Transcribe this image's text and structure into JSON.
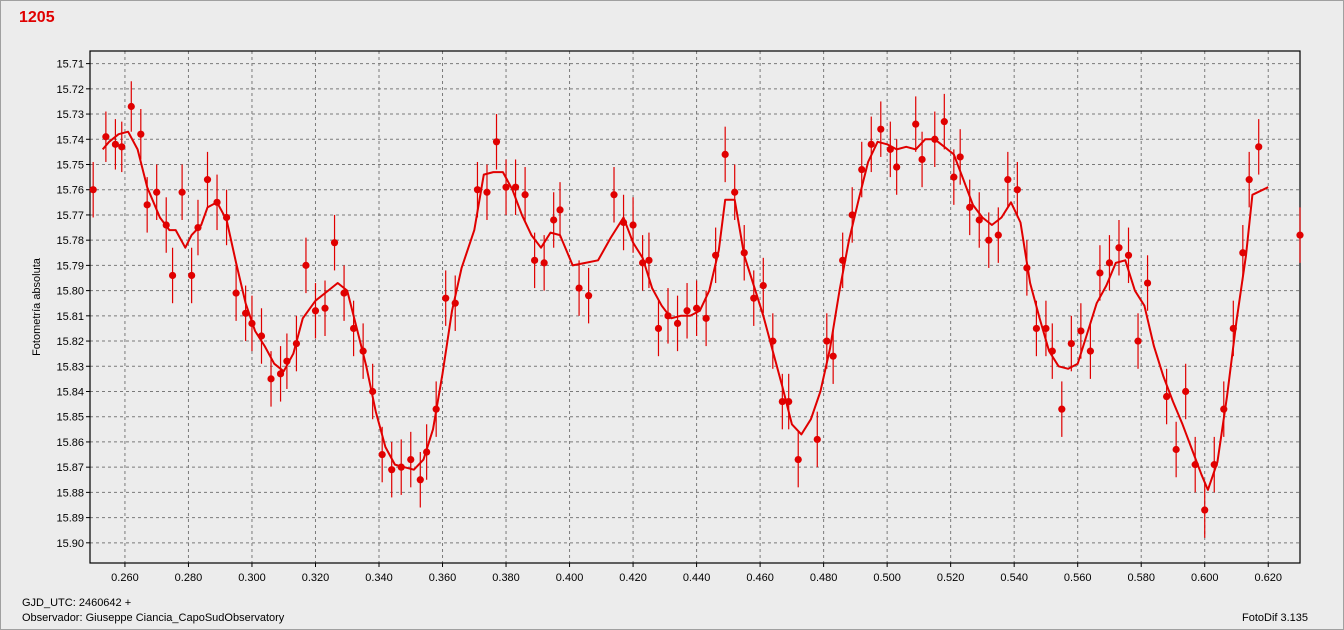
{
  "footer": {
    "gjd": "GJD_UTC: 2460642 +",
    "observer": "Observador: Giuseppe Ciancia_CapoSudObservatory",
    "software": "FotoDif 3.135"
  },
  "colors": {
    "series": "#e00000",
    "grid": "#7a7a7a",
    "plot_bg": "#ececec"
  },
  "chart_data": {
    "type": "scatter",
    "title": "1205",
    "xlabel": "",
    "ylabel": "Fotometría absoluta",
    "xlim": [
      0.249,
      0.63
    ],
    "ylim": [
      15.705,
      15.908
    ],
    "y_inverted": true,
    "grid": true,
    "x_ticks": [
      "0.260",
      "0.280",
      "0.300",
      "0.320",
      "0.340",
      "0.360",
      "0.380",
      "0.400",
      "0.420",
      "0.440",
      "0.460",
      "0.480",
      "0.500",
      "0.520",
      "0.540",
      "0.560",
      "0.580",
      "0.600",
      "0.620"
    ],
    "y_ticks": [
      "15.71",
      "15.72",
      "15.73",
      "15.74",
      "15.75",
      "15.76",
      "15.77",
      "15.78",
      "15.79",
      "15.80",
      "15.81",
      "15.82",
      "15.83",
      "15.84",
      "15.85",
      "15.86",
      "15.87",
      "15.88",
      "15.89",
      "15.90"
    ],
    "points": [
      {
        "x": 0.25,
        "y": 15.76,
        "err": 0.011
      },
      {
        "x": 0.254,
        "y": 15.739,
        "err": 0.01
      },
      {
        "x": 0.257,
        "y": 15.742,
        "err": 0.01
      },
      {
        "x": 0.259,
        "y": 15.743,
        "err": 0.01
      },
      {
        "x": 0.262,
        "y": 15.727,
        "err": 0.01
      },
      {
        "x": 0.265,
        "y": 15.738,
        "err": 0.01
      },
      {
        "x": 0.267,
        "y": 15.766,
        "err": 0.011
      },
      {
        "x": 0.27,
        "y": 15.761,
        "err": 0.011
      },
      {
        "x": 0.273,
        "y": 15.774,
        "err": 0.011
      },
      {
        "x": 0.275,
        "y": 15.794,
        "err": 0.011
      },
      {
        "x": 0.278,
        "y": 15.761,
        "err": 0.011
      },
      {
        "x": 0.281,
        "y": 15.794,
        "err": 0.011
      },
      {
        "x": 0.283,
        "y": 15.775,
        "err": 0.011
      },
      {
        "x": 0.286,
        "y": 15.756,
        "err": 0.011
      },
      {
        "x": 0.289,
        "y": 15.765,
        "err": 0.011
      },
      {
        "x": 0.292,
        "y": 15.771,
        "err": 0.011
      },
      {
        "x": 0.295,
        "y": 15.801,
        "err": 0.011
      },
      {
        "x": 0.298,
        "y": 15.809,
        "err": 0.011
      },
      {
        "x": 0.3,
        "y": 15.813,
        "err": 0.011
      },
      {
        "x": 0.303,
        "y": 15.818,
        "err": 0.011
      },
      {
        "x": 0.306,
        "y": 15.835,
        "err": 0.011
      },
      {
        "x": 0.309,
        "y": 15.833,
        "err": 0.011
      },
      {
        "x": 0.311,
        "y": 15.828,
        "err": 0.011
      },
      {
        "x": 0.314,
        "y": 15.821,
        "err": 0.011
      },
      {
        "x": 0.317,
        "y": 15.79,
        "err": 0.011
      },
      {
        "x": 0.32,
        "y": 15.808,
        "err": 0.011
      },
      {
        "x": 0.323,
        "y": 15.807,
        "err": 0.011
      },
      {
        "x": 0.326,
        "y": 15.781,
        "err": 0.011
      },
      {
        "x": 0.329,
        "y": 15.801,
        "err": 0.011
      },
      {
        "x": 0.332,
        "y": 15.815,
        "err": 0.011
      },
      {
        "x": 0.335,
        "y": 15.824,
        "err": 0.011
      },
      {
        "x": 0.338,
        "y": 15.84,
        "err": 0.011
      },
      {
        "x": 0.341,
        "y": 15.865,
        "err": 0.011
      },
      {
        "x": 0.344,
        "y": 15.871,
        "err": 0.011
      },
      {
        "x": 0.347,
        "y": 15.87,
        "err": 0.011
      },
      {
        "x": 0.35,
        "y": 15.867,
        "err": 0.011
      },
      {
        "x": 0.353,
        "y": 15.875,
        "err": 0.011
      },
      {
        "x": 0.355,
        "y": 15.864,
        "err": 0.011
      },
      {
        "x": 0.358,
        "y": 15.847,
        "err": 0.011
      },
      {
        "x": 0.361,
        "y": 15.803,
        "err": 0.011
      },
      {
        "x": 0.364,
        "y": 15.805,
        "err": 0.011
      },
      {
        "x": 0.371,
        "y": 15.76,
        "err": 0.011
      },
      {
        "x": 0.374,
        "y": 15.761,
        "err": 0.011
      },
      {
        "x": 0.377,
        "y": 15.741,
        "err": 0.011
      },
      {
        "x": 0.38,
        "y": 15.759,
        "err": 0.011
      },
      {
        "x": 0.383,
        "y": 15.759,
        "err": 0.011
      },
      {
        "x": 0.386,
        "y": 15.762,
        "err": 0.011
      },
      {
        "x": 0.389,
        "y": 15.788,
        "err": 0.011
      },
      {
        "x": 0.392,
        "y": 15.789,
        "err": 0.011
      },
      {
        "x": 0.395,
        "y": 15.772,
        "err": 0.011
      },
      {
        "x": 0.397,
        "y": 15.768,
        "err": 0.011
      },
      {
        "x": 0.403,
        "y": 15.799,
        "err": 0.011
      },
      {
        "x": 0.406,
        "y": 15.802,
        "err": 0.011
      },
      {
        "x": 0.414,
        "y": 15.762,
        "err": 0.011
      },
      {
        "x": 0.417,
        "y": 15.773,
        "err": 0.011
      },
      {
        "x": 0.42,
        "y": 15.774,
        "err": 0.011
      },
      {
        "x": 0.423,
        "y": 15.789,
        "err": 0.011
      },
      {
        "x": 0.425,
        "y": 15.788,
        "err": 0.011
      },
      {
        "x": 0.428,
        "y": 15.815,
        "err": 0.011
      },
      {
        "x": 0.431,
        "y": 15.81,
        "err": 0.011
      },
      {
        "x": 0.434,
        "y": 15.813,
        "err": 0.011
      },
      {
        "x": 0.437,
        "y": 15.808,
        "err": 0.011
      },
      {
        "x": 0.44,
        "y": 15.807,
        "err": 0.011
      },
      {
        "x": 0.443,
        "y": 15.811,
        "err": 0.011
      },
      {
        "x": 0.446,
        "y": 15.786,
        "err": 0.011
      },
      {
        "x": 0.449,
        "y": 15.746,
        "err": 0.011
      },
      {
        "x": 0.452,
        "y": 15.761,
        "err": 0.011
      },
      {
        "x": 0.455,
        "y": 15.785,
        "err": 0.011
      },
      {
        "x": 0.458,
        "y": 15.803,
        "err": 0.011
      },
      {
        "x": 0.461,
        "y": 15.798,
        "err": 0.011
      },
      {
        "x": 0.464,
        "y": 15.82,
        "err": 0.011
      },
      {
        "x": 0.467,
        "y": 15.844,
        "err": 0.011
      },
      {
        "x": 0.469,
        "y": 15.844,
        "err": 0.011
      },
      {
        "x": 0.472,
        "y": 15.867,
        "err": 0.011
      },
      {
        "x": 0.478,
        "y": 15.859,
        "err": 0.011
      },
      {
        "x": 0.481,
        "y": 15.82,
        "err": 0.011
      },
      {
        "x": 0.483,
        "y": 15.826,
        "err": 0.011
      },
      {
        "x": 0.486,
        "y": 15.788,
        "err": 0.011
      },
      {
        "x": 0.489,
        "y": 15.77,
        "err": 0.011
      },
      {
        "x": 0.492,
        "y": 15.752,
        "err": 0.011
      },
      {
        "x": 0.495,
        "y": 15.742,
        "err": 0.011
      },
      {
        "x": 0.498,
        "y": 15.736,
        "err": 0.011
      },
      {
        "x": 0.501,
        "y": 15.744,
        "err": 0.011
      },
      {
        "x": 0.503,
        "y": 15.751,
        "err": 0.011
      },
      {
        "x": 0.509,
        "y": 15.734,
        "err": 0.011
      },
      {
        "x": 0.511,
        "y": 15.748,
        "err": 0.011
      },
      {
        "x": 0.515,
        "y": 15.74,
        "err": 0.011
      },
      {
        "x": 0.518,
        "y": 15.733,
        "err": 0.011
      },
      {
        "x": 0.521,
        "y": 15.755,
        "err": 0.011
      },
      {
        "x": 0.523,
        "y": 15.747,
        "err": 0.011
      },
      {
        "x": 0.526,
        "y": 15.767,
        "err": 0.011
      },
      {
        "x": 0.529,
        "y": 15.772,
        "err": 0.011
      },
      {
        "x": 0.532,
        "y": 15.78,
        "err": 0.011
      },
      {
        "x": 0.535,
        "y": 15.778,
        "err": 0.011
      },
      {
        "x": 0.538,
        "y": 15.756,
        "err": 0.011
      },
      {
        "x": 0.541,
        "y": 15.76,
        "err": 0.011
      },
      {
        "x": 0.544,
        "y": 15.791,
        "err": 0.011
      },
      {
        "x": 0.547,
        "y": 15.815,
        "err": 0.011
      },
      {
        "x": 0.55,
        "y": 15.815,
        "err": 0.011
      },
      {
        "x": 0.552,
        "y": 15.824,
        "err": 0.011
      },
      {
        "x": 0.555,
        "y": 15.847,
        "err": 0.011
      },
      {
        "x": 0.558,
        "y": 15.821,
        "err": 0.011
      },
      {
        "x": 0.561,
        "y": 15.816,
        "err": 0.011
      },
      {
        "x": 0.564,
        "y": 15.824,
        "err": 0.011
      },
      {
        "x": 0.567,
        "y": 15.793,
        "err": 0.011
      },
      {
        "x": 0.57,
        "y": 15.789,
        "err": 0.011
      },
      {
        "x": 0.573,
        "y": 15.783,
        "err": 0.011
      },
      {
        "x": 0.576,
        "y": 15.786,
        "err": 0.011
      },
      {
        "x": 0.579,
        "y": 15.82,
        "err": 0.011
      },
      {
        "x": 0.582,
        "y": 15.797,
        "err": 0.011
      },
      {
        "x": 0.588,
        "y": 15.842,
        "err": 0.011
      },
      {
        "x": 0.591,
        "y": 15.863,
        "err": 0.011
      },
      {
        "x": 0.594,
        "y": 15.84,
        "err": 0.011
      },
      {
        "x": 0.597,
        "y": 15.869,
        "err": 0.011
      },
      {
        "x": 0.6,
        "y": 15.887,
        "err": 0.011
      },
      {
        "x": 0.603,
        "y": 15.869,
        "err": 0.011
      },
      {
        "x": 0.606,
        "y": 15.847,
        "err": 0.011
      },
      {
        "x": 0.609,
        "y": 15.815,
        "err": 0.011
      },
      {
        "x": 0.612,
        "y": 15.785,
        "err": 0.011
      },
      {
        "x": 0.614,
        "y": 15.756,
        "err": 0.011
      },
      {
        "x": 0.617,
        "y": 15.743,
        "err": 0.011
      },
      {
        "x": 0.63,
        "y": 15.778,
        "err": 0.011
      }
    ],
    "fit_line": [
      [
        0.253,
        15.744
      ],
      [
        0.255,
        15.741
      ],
      [
        0.258,
        15.738
      ],
      [
        0.261,
        15.737
      ],
      [
        0.264,
        15.744
      ],
      [
        0.267,
        15.759
      ],
      [
        0.271,
        15.771
      ],
      [
        0.274,
        15.776
      ],
      [
        0.276,
        15.776
      ],
      [
        0.279,
        15.783
      ],
      [
        0.281,
        15.778
      ],
      [
        0.284,
        15.774
      ],
      [
        0.286,
        15.767
      ],
      [
        0.289,
        15.765
      ],
      [
        0.292,
        15.772
      ],
      [
        0.295,
        15.789
      ],
      [
        0.298,
        15.805
      ],
      [
        0.301,
        15.816
      ],
      [
        0.304,
        15.822
      ],
      [
        0.307,
        15.829
      ],
      [
        0.31,
        15.832
      ],
      [
        0.313,
        15.825
      ],
      [
        0.316,
        15.811
      ],
      [
        0.32,
        15.804
      ],
      [
        0.324,
        15.8
      ],
      [
        0.327,
        15.797
      ],
      [
        0.33,
        15.8
      ],
      [
        0.333,
        15.815
      ],
      [
        0.336,
        15.83
      ],
      [
        0.339,
        15.848
      ],
      [
        0.342,
        15.862
      ],
      [
        0.345,
        15.869
      ],
      [
        0.348,
        15.87
      ],
      [
        0.351,
        15.871
      ],
      [
        0.354,
        15.867
      ],
      [
        0.357,
        15.855
      ],
      [
        0.36,
        15.833
      ],
      [
        0.363,
        15.808
      ],
      [
        0.366,
        15.791
      ],
      [
        0.37,
        15.776
      ],
      [
        0.373,
        15.754
      ],
      [
        0.376,
        15.753
      ],
      [
        0.379,
        15.753
      ],
      [
        0.382,
        15.76
      ],
      [
        0.385,
        15.77
      ],
      [
        0.388,
        15.778
      ],
      [
        0.391,
        15.783
      ],
      [
        0.394,
        15.777
      ],
      [
        0.397,
        15.778
      ],
      [
        0.401,
        15.79
      ],
      [
        0.405,
        15.789
      ],
      [
        0.409,
        15.788
      ],
      [
        0.413,
        15.779
      ],
      [
        0.417,
        15.771
      ],
      [
        0.42,
        15.781
      ],
      [
        0.423,
        15.787
      ],
      [
        0.426,
        15.799
      ],
      [
        0.429,
        15.806
      ],
      [
        0.432,
        15.811
      ],
      [
        0.435,
        15.81
      ],
      [
        0.438,
        15.81
      ],
      [
        0.441,
        15.808
      ],
      [
        0.444,
        15.8
      ],
      [
        0.447,
        15.784
      ],
      [
        0.449,
        15.764
      ],
      [
        0.452,
        15.764
      ],
      [
        0.455,
        15.786
      ],
      [
        0.458,
        15.798
      ],
      [
        0.461,
        15.81
      ],
      [
        0.464,
        15.824
      ],
      [
        0.467,
        15.838
      ],
      [
        0.47,
        15.853
      ],
      [
        0.473,
        15.857
      ],
      [
        0.476,
        15.851
      ],
      [
        0.479,
        15.84
      ],
      [
        0.482,
        15.823
      ],
      [
        0.485,
        15.8
      ],
      [
        0.488,
        15.78
      ],
      [
        0.491,
        15.764
      ],
      [
        0.494,
        15.749
      ],
      [
        0.497,
        15.741
      ],
      [
        0.5,
        15.742
      ],
      [
        0.503,
        15.744
      ],
      [
        0.506,
        15.743
      ],
      [
        0.509,
        15.744
      ],
      [
        0.512,
        15.74
      ],
      [
        0.515,
        15.74
      ],
      [
        0.518,
        15.743
      ],
      [
        0.521,
        15.746
      ],
      [
        0.524,
        15.756
      ],
      [
        0.527,
        15.766
      ],
      [
        0.53,
        15.771
      ],
      [
        0.533,
        15.774
      ],
      [
        0.536,
        15.771
      ],
      [
        0.539,
        15.765
      ],
      [
        0.542,
        15.773
      ],
      [
        0.545,
        15.797
      ],
      [
        0.548,
        15.811
      ],
      [
        0.551,
        15.824
      ],
      [
        0.554,
        15.83
      ],
      [
        0.557,
        15.831
      ],
      [
        0.56,
        15.829
      ],
      [
        0.563,
        15.817
      ],
      [
        0.566,
        15.805
      ],
      [
        0.569,
        15.798
      ],
      [
        0.572,
        15.789
      ],
      [
        0.575,
        15.788
      ],
      [
        0.578,
        15.8
      ],
      [
        0.581,
        15.806
      ],
      [
        0.584,
        15.822
      ],
      [
        0.587,
        15.834
      ],
      [
        0.59,
        15.844
      ],
      [
        0.593,
        15.853
      ],
      [
        0.596,
        15.863
      ],
      [
        0.599,
        15.873
      ],
      [
        0.601,
        15.879
      ],
      [
        0.604,
        15.868
      ],
      [
        0.607,
        15.842
      ],
      [
        0.61,
        15.812
      ],
      [
        0.613,
        15.786
      ],
      [
        0.615,
        15.762
      ],
      [
        0.62,
        15.759
      ]
    ]
  }
}
